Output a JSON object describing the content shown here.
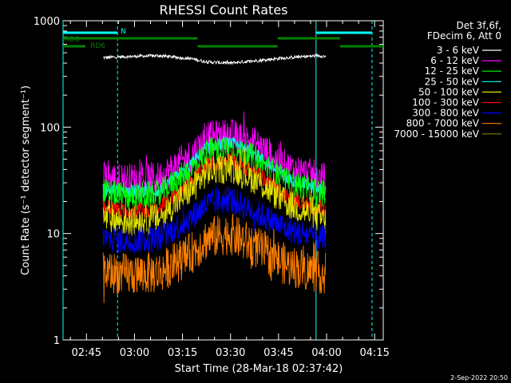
{
  "chart_data": {
    "type": "line",
    "title": "RHESSI Count Rates",
    "ylabel": "Count Rate (s⁻¹ detector segment⁻¹)",
    "xlabel": "Start Time (28-Mar-18 02:37:42)",
    "x_unit": "minutes after 02:37:42",
    "xlim": [
      0,
      100
    ],
    "ylim": [
      1,
      1000
    ],
    "yscale": "log",
    "x_ticks": [
      "02:45",
      "03:00",
      "03:15",
      "03:30",
      "03:45",
      "04:00",
      "04:15"
    ],
    "y_ticks": [
      "1",
      "10",
      "100",
      "1000"
    ],
    "legend_header": [
      "Det 3f,6f,",
      "FDecim 6, Att 0"
    ],
    "legend_position": "right",
    "footer": "2-Sep-2022 20:50",
    "series": [
      {
        "name": "3 - 6 keV",
        "color": "#ffffff",
        "x": [
          12.5,
          20,
          30,
          40,
          45,
          52,
          60,
          70,
          80,
          82
        ],
        "y": [
          450,
          460,
          470,
          440,
          410,
          400,
          420,
          450,
          470,
          460
        ]
      },
      {
        "name": "6 - 12 keV",
        "color": "#ff00ff",
        "x": [
          12.5,
          20,
          30,
          40,
          45,
          52,
          60,
          70,
          80,
          82
        ],
        "y": [
          33,
          32,
          33,
          55,
          78,
          85,
          70,
          42,
          33,
          32
        ]
      },
      {
        "name": "12 - 25 keV",
        "color": "#00ff00",
        "x": [
          12.5,
          20,
          30,
          40,
          45,
          52,
          60,
          70,
          80,
          82
        ],
        "y": [
          24,
          22,
          23,
          40,
          58,
          64,
          50,
          30,
          24,
          23
        ]
      },
      {
        "name": "25 - 50 keV",
        "color": "#00ffff",
        "x": [
          12.5,
          20,
          30,
          40,
          45,
          52,
          60,
          70,
          80,
          82
        ],
        "y": [
          26,
          25,
          25,
          45,
          64,
          72,
          56,
          33,
          26,
          25
        ]
      },
      {
        "name": "50 - 100 keV",
        "color": "#e0e000",
        "x": [
          12.5,
          20,
          30,
          40,
          45,
          52,
          60,
          70,
          80,
          82
        ],
        "y": [
          14,
          13,
          14,
          26,
          38,
          42,
          32,
          19,
          14,
          13
        ]
      },
      {
        "name": "100 - 300 keV",
        "color": "#ff0000",
        "x": [
          12.5,
          20,
          30,
          40,
          45,
          52,
          60,
          70,
          80,
          82
        ],
        "y": [
          18,
          16,
          17,
          30,
          44,
          48,
          38,
          22,
          17,
          17
        ]
      },
      {
        "name": "300 - 800 keV",
        "color": "#0000ff",
        "x": [
          12.5,
          20,
          30,
          40,
          45,
          52,
          60,
          70,
          80,
          82
        ],
        "y": [
          9,
          8.5,
          9,
          14,
          19,
          21,
          16,
          11,
          9,
          9
        ]
      },
      {
        "name": "800 - 7000 keV",
        "color": "#ff8000",
        "x": [
          12.5,
          20,
          30,
          40,
          45,
          52,
          60,
          70,
          80,
          82
        ],
        "y": [
          4.4,
          4.1,
          4.3,
          6.5,
          9,
          10,
          7.5,
          5,
          4.3,
          4.2
        ]
      },
      {
        "name": "7000 - 15000 keV",
        "color": "#808000",
        "x": [],
        "y": []
      }
    ],
    "annotations": {
      "solid_vlines": {
        "color": "#00ffff",
        "x": [
          0,
          79
        ]
      },
      "dashed_vlines": {
        "color": "#00ffff",
        "x": [
          17,
          96.5
        ]
      },
      "flag_labels": [
        "N",
        "RD0",
        "RD6"
      ],
      "night_bars": {
        "color": "#00ffff",
        "segments": [
          [
            0,
            17
          ],
          [
            79,
            96.5
          ]
        ]
      },
      "rd_bars_top": {
        "color": "#008000",
        "segments": [
          [
            0,
            42
          ],
          [
            67,
            86.5
          ]
        ]
      },
      "rd_bars_bottom": {
        "color": "#008000",
        "segments": [
          [
            0,
            7
          ],
          [
            42,
            67
          ],
          [
            86.5,
            100
          ]
        ]
      }
    }
  }
}
